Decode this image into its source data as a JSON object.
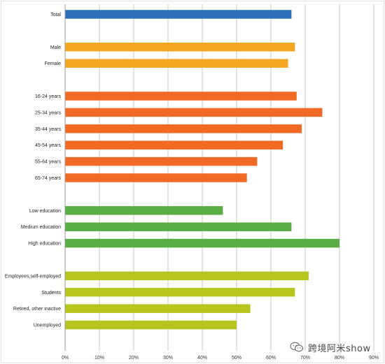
{
  "chart_data": {
    "type": "bar",
    "orientation": "horizontal",
    "xlim": [
      0,
      90
    ],
    "x_ticks": [
      "0%",
      "10%",
      "20%",
      "30%",
      "40%",
      "50%",
      "60%",
      "70%",
      "80%",
      "90%"
    ],
    "grid": true,
    "groups": [
      {
        "color": "#2e6fba",
        "bars": [
          {
            "label": "Total",
            "value": 66
          }
        ]
      },
      {
        "color": "#f5a623",
        "bars": [
          {
            "label": "Male",
            "value": 67
          },
          {
            "label": "Female",
            "value": 65
          }
        ]
      },
      {
        "color": "#f06a25",
        "bars": [
          {
            "label": "16-24 years",
            "value": 67.5
          },
          {
            "label": "25-34 years",
            "value": 75
          },
          {
            "label": "35-44 years",
            "value": 69
          },
          {
            "label": "45-54 years",
            "value": 63.5
          },
          {
            "label": "55-64 years",
            "value": 56
          },
          {
            "label": "65-74 years",
            "value": 53
          }
        ]
      },
      {
        "color": "#5aac44",
        "bars": [
          {
            "label": "Low education",
            "value": 46
          },
          {
            "label": "Medium education",
            "value": 66
          },
          {
            "label": "High education",
            "value": 80
          }
        ]
      },
      {
        "color": "#b6c61f",
        "bars": [
          {
            "label": "Employees,self-employed",
            "value": 71
          },
          {
            "label": "Students",
            "value": 67
          },
          {
            "label": "Retired, other inactive",
            "value": 54
          },
          {
            "label": "Unemployed",
            "value": 50
          }
        ]
      }
    ]
  },
  "watermark": {
    "text": "跨境阿米show",
    "icon": "wechat-icon"
  }
}
